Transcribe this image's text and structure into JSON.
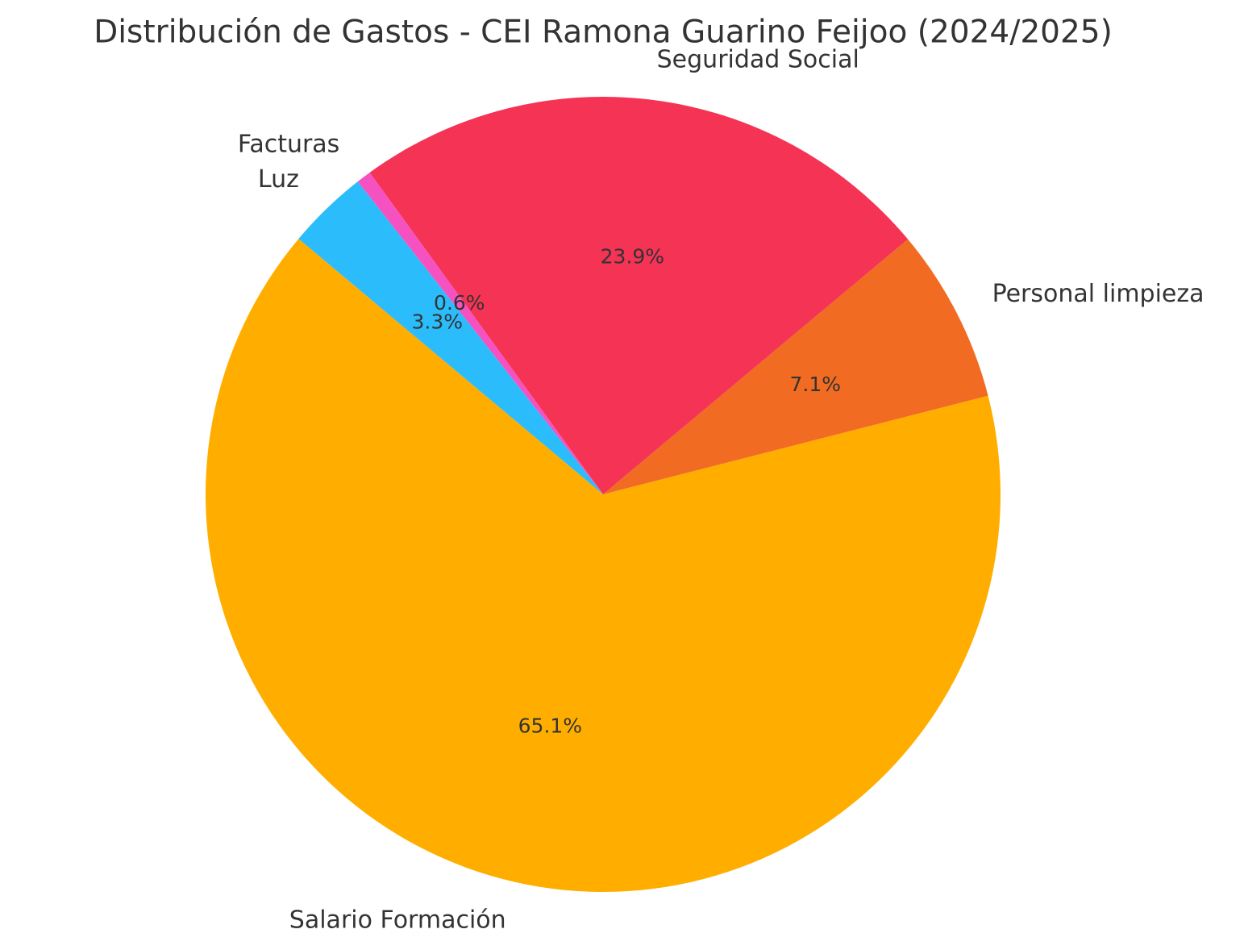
{
  "chart_data": {
    "type": "pie",
    "title": "Distribución de Gastos - CEI Ramona Guarino Feijoo (2024/2025)",
    "categories": [
      "Salario Formación",
      "Personal limpieza",
      "Seguridad Social",
      "Facturas",
      "Luz"
    ],
    "values": [
      65.1,
      7.1,
      23.9,
      0.6,
      3.3
    ],
    "value_labels": [
      "65.1%",
      "7.1%",
      "23.9%",
      "0.6%",
      "3.3%"
    ],
    "colors": [
      "#ffae00",
      "#f26b22",
      "#f43355",
      "#f651c1",
      "#2bbcfc"
    ],
    "start_angle": 140,
    "counterclock": true
  }
}
